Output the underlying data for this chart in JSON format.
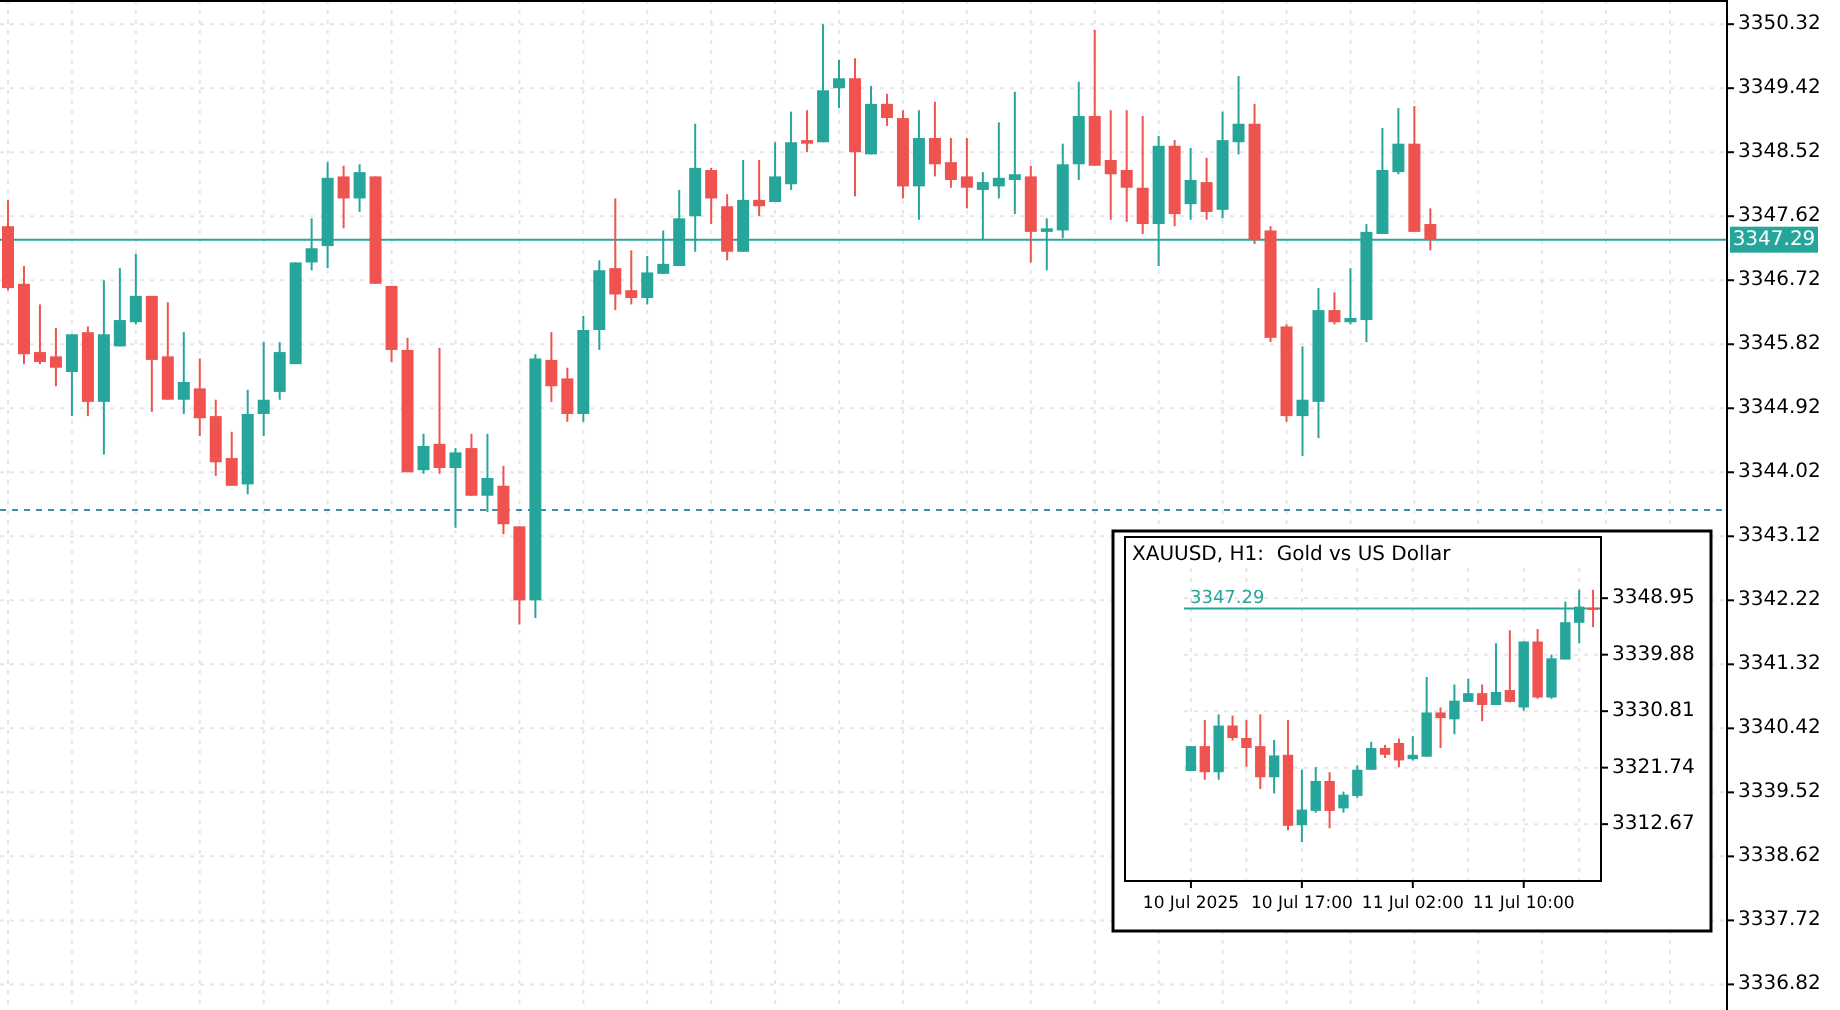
{
  "chart_data": [
    {
      "type": "candlestick",
      "grid": true,
      "ylim": [
        3336.46,
        3350.66
      ],
      "yticks": [
        3350.32,
        3349.42,
        3348.52,
        3347.62,
        3346.72,
        3345.82,
        3344.92,
        3344.02,
        3343.12,
        3342.22,
        3341.32,
        3340.42,
        3339.52,
        3338.62,
        3337.72,
        3336.82
      ],
      "ref_lines": [
        {
          "axis": "y",
          "value": 3347.29,
          "label": "3347.29",
          "color": "#26a69a"
        },
        {
          "axis": "y",
          "value": 3343.49,
          "color": "#3d8fa8",
          "line_style": "dashed"
        }
      ],
      "categories": [
        null,
        null,
        null,
        null,
        null,
        null,
        null,
        null,
        null,
        null,
        null,
        null,
        null,
        null,
        null,
        null,
        null,
        null,
        null,
        null,
        null,
        null,
        null,
        null,
        null,
        null,
        null,
        null,
        null,
        null,
        null,
        null,
        null,
        null,
        null,
        null,
        null,
        null,
        null,
        null,
        null,
        null,
        null,
        null,
        null,
        null,
        null,
        null,
        null,
        null,
        null,
        null,
        null,
        null,
        null,
        null,
        null,
        null,
        null,
        null,
        null,
        null,
        null,
        null,
        null,
        null,
        null,
        null,
        null,
        null,
        null,
        null,
        null,
        null,
        null,
        null,
        null,
        null,
        null,
        null,
        null,
        null,
        null,
        null,
        null,
        null,
        null,
        null,
        null,
        null,
        null,
        null,
        null,
        null,
        null,
        null,
        null,
        null,
        null,
        null,
        null,
        null,
        null,
        null,
        null,
        null,
        null,
        null
      ],
      "ohlc": [
        [
          3347.48,
          3347.85,
          3346.58,
          3346.61
        ],
        [
          3346.67,
          3346.92,
          3345.54,
          3345.68
        ],
        [
          3345.71,
          3346.38,
          3345.54,
          3345.57
        ],
        [
          3345.65,
          3346.05,
          3345.23,
          3345.49
        ],
        [
          3345.43,
          3345.96,
          3344.81,
          3345.96
        ],
        [
          3345.99,
          3346.07,
          3344.81,
          3345.01
        ],
        [
          3345.01,
          3346.72,
          3344.27,
          3345.96
        ],
        [
          3345.79,
          3346.89,
          3345.79,
          3346.16
        ],
        [
          3346.13,
          3347.09,
          3346.1,
          3346.5
        ],
        [
          3346.5,
          3346.5,
          3344.87,
          3345.6
        ],
        [
          3345.65,
          3346.41,
          3345.04,
          3345.04
        ],
        [
          3345.04,
          3345.99,
          3344.84,
          3345.29
        ],
        [
          3345.2,
          3345.62,
          3344.53,
          3344.78
        ],
        [
          3344.81,
          3345.04,
          3343.97,
          3344.16
        ],
        [
          3344.22,
          3344.59,
          3343.83,
          3343.83
        ],
        [
          3343.85,
          3345.18,
          3343.71,
          3344.84
        ],
        [
          3344.84,
          3345.85,
          3344.53,
          3345.04
        ],
        [
          3345.15,
          3345.85,
          3345.04,
          3345.71
        ],
        [
          3345.54,
          3346.97,
          3345.54,
          3346.97
        ],
        [
          3346.97,
          3347.59,
          3346.86,
          3347.17
        ],
        [
          3347.2,
          3348.38,
          3346.89,
          3348.16
        ],
        [
          3348.18,
          3348.33,
          3347.45,
          3347.87
        ],
        [
          3347.87,
          3348.35,
          3347.68,
          3348.24
        ],
        [
          3348.18,
          3348.18,
          3346.67,
          3346.67
        ],
        [
          3346.64,
          3346.64,
          3345.57,
          3345.74
        ],
        [
          3345.74,
          3345.91,
          3344.02,
          3344.02
        ],
        [
          3344.05,
          3344.56,
          3344.0,
          3344.39
        ],
        [
          3344.42,
          3345.77,
          3344.0,
          3344.08
        ],
        [
          3344.08,
          3344.36,
          3343.24,
          3344.3
        ],
        [
          3344.36,
          3344.56,
          3343.69,
          3343.69
        ],
        [
          3343.69,
          3344.56,
          3343.46,
          3343.94
        ],
        [
          3343.83,
          3344.11,
          3343.15,
          3343.29
        ],
        [
          3343.26,
          3343.26,
          3341.88,
          3342.22
        ],
        [
          3342.22,
          3345.68,
          3341.97,
          3345.62
        ],
        [
          3345.6,
          3345.99,
          3345.01,
          3345.23
        ],
        [
          3345.34,
          3345.49,
          3344.73,
          3344.84
        ],
        [
          3344.84,
          3346.22,
          3344.73,
          3346.02
        ],
        [
          3346.02,
          3347.0,
          3345.74,
          3346.86
        ],
        [
          3346.89,
          3347.87,
          3346.3,
          3346.52
        ],
        [
          3346.58,
          3347.14,
          3346.38,
          3346.47
        ],
        [
          3346.47,
          3347.06,
          3346.38,
          3346.83
        ],
        [
          3346.81,
          3347.42,
          3346.81,
          3346.95
        ],
        [
          3346.92,
          3347.99,
          3346.92,
          3347.59
        ],
        [
          3347.62,
          3348.92,
          3347.12,
          3348.3
        ],
        [
          3348.27,
          3348.3,
          3347.51,
          3347.87
        ],
        [
          3347.76,
          3347.93,
          3347.0,
          3347.12
        ],
        [
          3347.12,
          3348.41,
          3347.12,
          3347.85
        ],
        [
          3347.85,
          3348.41,
          3347.62,
          3347.76
        ],
        [
          3347.82,
          3348.66,
          3347.82,
          3348.18
        ],
        [
          3348.07,
          3349.09,
          3347.99,
          3348.66
        ],
        [
          3348.69,
          3349.11,
          3348.52,
          3348.64
        ],
        [
          3348.66,
          3350.32,
          3348.66,
          3349.39
        ],
        [
          3349.42,
          3349.82,
          3349.14,
          3349.56
        ],
        [
          3349.56,
          3349.84,
          3347.9,
          3348.52
        ],
        [
          3348.49,
          3349.45,
          3348.49,
          3349.2
        ],
        [
          3349.2,
          3349.34,
          3348.89,
          3349.0
        ],
        [
          3349.0,
          3349.11,
          3347.87,
          3348.04
        ],
        [
          3348.04,
          3349.11,
          3347.57,
          3348.72
        ],
        [
          3348.72,
          3349.23,
          3348.18,
          3348.35
        ],
        [
          3348.38,
          3348.72,
          3348.02,
          3348.13
        ],
        [
          3348.18,
          3348.72,
          3347.73,
          3348.02
        ],
        [
          3347.99,
          3348.24,
          3347.29,
          3348.1
        ],
        [
          3348.04,
          3348.94,
          3347.87,
          3348.16
        ],
        [
          3348.13,
          3349.37,
          3347.65,
          3348.21
        ],
        [
          3348.18,
          3348.33,
          3346.97,
          3347.4
        ],
        [
          3347.4,
          3347.59,
          3346.86,
          3347.45
        ],
        [
          3347.42,
          3348.64,
          3347.31,
          3348.35
        ],
        [
          3348.35,
          3349.51,
          3348.13,
          3349.03
        ],
        [
          3349.03,
          3350.24,
          3348.33,
          3348.33
        ],
        [
          3348.41,
          3349.11,
          3347.57,
          3348.21
        ],
        [
          3348.27,
          3349.11,
          3347.54,
          3348.02
        ],
        [
          3348.02,
          3349.03,
          3347.37,
          3347.51
        ],
        [
          3347.51,
          3348.75,
          3346.92,
          3348.61
        ],
        [
          3348.61,
          3348.69,
          3347.48,
          3347.65
        ],
        [
          3347.79,
          3348.58,
          3347.57,
          3348.13
        ],
        [
          3348.1,
          3348.44,
          3347.57,
          3347.68
        ],
        [
          3347.71,
          3349.09,
          3347.59,
          3348.69
        ],
        [
          3348.66,
          3349.59,
          3348.49,
          3348.92
        ],
        [
          3348.92,
          3349.2,
          3347.23,
          3347.29
        ],
        [
          3347.42,
          3347.48,
          3345.85,
          3345.91
        ],
        [
          3346.07,
          3346.1,
          3344.73,
          3344.81
        ],
        [
          3344.81,
          3345.79,
          3344.25,
          3345.04
        ],
        [
          3345.01,
          3346.61,
          3344.5,
          3346.3
        ],
        [
          3346.3,
          3346.55,
          3346.1,
          3346.13
        ],
        [
          3346.13,
          3346.89,
          3346.1,
          3346.19
        ],
        [
          3346.16,
          3347.51,
          3345.85,
          3347.4
        ],
        [
          3347.37,
          3348.86,
          3347.37,
          3348.27
        ],
        [
          3348.24,
          3349.14,
          3348.21,
          3348.64
        ],
        [
          3348.64,
          3349.17,
          3347.4,
          3347.4
        ],
        [
          3347.51,
          3347.73,
          3347.14,
          3347.29
        ],
        null,
        null,
        null,
        null,
        null,
        null,
        null,
        null,
        null,
        null,
        null,
        null,
        null,
        null,
        null,
        null,
        null,
        null
      ],
      "colors": [
        "#ef5350",
        "#ef5350",
        "#ef5350",
        "#ef5350",
        "#26a69a",
        "#ef5350",
        "#26a69a",
        "#26a69a",
        "#26a69a",
        "#ef5350",
        "#ef5350",
        "#26a69a",
        "#ef5350",
        "#ef5350",
        "#ef5350",
        "#26a69a",
        "#26a69a",
        "#26a69a",
        "#26a69a",
        "#26a69a",
        "#26a69a",
        "#ef5350",
        "#26a69a",
        "#ef5350",
        "#ef5350",
        "#ef5350",
        "#26a69a",
        "#ef5350",
        "#26a69a",
        "#ef5350",
        "#26a69a",
        "#ef5350",
        "#ef5350",
        "#26a69a",
        "#ef5350",
        "#ef5350",
        "#26a69a",
        "#26a69a",
        "#ef5350",
        "#ef5350",
        "#26a69a",
        "#26a69a",
        "#26a69a",
        "#26a69a",
        "#ef5350",
        "#ef5350",
        "#26a69a",
        "#ef5350",
        "#26a69a",
        "#26a69a",
        "#ef5350",
        "#26a69a",
        "#26a69a",
        "#ef5350",
        "#26a69a",
        "#ef5350",
        "#ef5350",
        "#26a69a",
        "#ef5350",
        "#ef5350",
        "#ef5350",
        "#26a69a",
        "#26a69a",
        "#26a69a",
        "#ef5350",
        "#26a69a",
        "#26a69a",
        "#26a69a",
        "#ef5350",
        "#ef5350",
        "#ef5350",
        "#ef5350",
        "#26a69a",
        "#ef5350",
        "#26a69a",
        "#ef5350",
        "#26a69a",
        "#26a69a",
        "#ef5350",
        "#ef5350",
        "#ef5350",
        "#26a69a",
        "#26a69a",
        "#ef5350",
        "#26a69a",
        "#26a69a",
        "#26a69a",
        "#26a69a",
        "#ef5350",
        "#ef5350",
        null,
        null,
        null,
        null,
        null,
        null,
        null,
        null,
        null,
        null,
        null,
        null,
        null,
        null,
        null,
        null,
        null,
        null
      ]
    },
    {
      "type": "candlestick",
      "title": "XAUUSD, H1:  Gold vs US Dollar",
      "grid": true,
      "ylim": [
        3303.7,
        3353.8
      ],
      "yticks": [
        3348.95,
        3339.88,
        3330.81,
        3321.74,
        3312.67
      ],
      "ref_lines": [
        {
          "axis": "y",
          "value": 3347.29,
          "label": "3347.29",
          "color": "#26a69a"
        }
      ],
      "categories": [
        "10 Jul 2025",
        null,
        null,
        null,
        null,
        null,
        null,
        null,
        "10 Jul 17:00",
        null,
        null,
        null,
        null,
        null,
        null,
        null,
        "11 Jul 02:00",
        null,
        null,
        null,
        null,
        null,
        null,
        null,
        "11 Jul 10:00",
        null,
        null,
        null,
        null,
        null
      ],
      "ohlc": [
        [
          3321.2,
          3325.2,
          3321.2,
          3325.2
        ],
        [
          3325.2,
          3329.4,
          3319.8,
          3321.0
        ],
        [
          3321.0,
          3330.3,
          3319.8,
          3328.5
        ],
        [
          3328.5,
          3330.1,
          3326.1,
          3326.5
        ],
        [
          3326.5,
          3329.4,
          3321.9,
          3324.9
        ],
        [
          3325.2,
          3330.3,
          3318.3,
          3320.2
        ],
        [
          3320.2,
          3326.2,
          3317.6,
          3323.7
        ],
        [
          3323.8,
          3329.4,
          3311.7,
          3312.4
        ],
        [
          3312.5,
          3321.4,
          3309.8,
          3315.0
        ],
        [
          3314.8,
          3321.8,
          3314.5,
          3319.6
        ],
        [
          3319.6,
          3321.0,
          3312.0,
          3314.8
        ],
        [
          3315.2,
          3317.9,
          3314.5,
          3317.4
        ],
        [
          3317.2,
          3322.1,
          3316.9,
          3321.4
        ],
        [
          3321.4,
          3325.9,
          3321.4,
          3324.9
        ],
        [
          3324.9,
          3325.4,
          3323.3,
          3323.8
        ],
        [
          3325.7,
          3326.4,
          3321.8,
          3322.9
        ],
        [
          3323.1,
          3326.8,
          3322.9,
          3323.8
        ],
        [
          3323.5,
          3336.3,
          3323.5,
          3330.6
        ],
        [
          3330.6,
          3331.4,
          3324.9,
          3329.7
        ],
        [
          3329.5,
          3335.1,
          3327.1,
          3332.5
        ],
        [
          3332.3,
          3336.0,
          3332.3,
          3333.7
        ],
        [
          3333.7,
          3335.1,
          3329.2,
          3331.8
        ],
        [
          3331.8,
          3341.7,
          3331.8,
          3333.9
        ],
        [
          3334.2,
          3343.8,
          3332.2,
          3332.3
        ],
        [
          3331.4,
          3342.0,
          3330.9,
          3342.0
        ],
        [
          3342.0,
          3344.0,
          3332.8,
          3333.0
        ],
        [
          3333.0,
          3339.9,
          3332.8,
          3339.3
        ],
        [
          3339.1,
          3348.4,
          3339.1,
          3345.1
        ],
        [
          3345.0,
          3350.3,
          3341.7,
          3347.6
        ],
        [
          3347.4,
          3350.3,
          3344.3,
          3347.3
        ]
      ],
      "colors": [
        "#26a69a",
        "#ef5350",
        "#26a69a",
        "#ef5350",
        "#ef5350",
        "#ef5350",
        "#26a69a",
        "#ef5350",
        "#26a69a",
        "#26a69a",
        "#ef5350",
        "#26a69a",
        "#26a69a",
        "#26a69a",
        "#ef5350",
        "#ef5350",
        "#26a69a",
        "#26a69a",
        "#ef5350",
        "#26a69a",
        "#26a69a",
        "#ef5350",
        "#26a69a",
        "#ef5350",
        "#26a69a",
        "#ef5350",
        "#26a69a",
        "#26a69a",
        "#26a69a",
        "#ef5350"
      ]
    }
  ]
}
